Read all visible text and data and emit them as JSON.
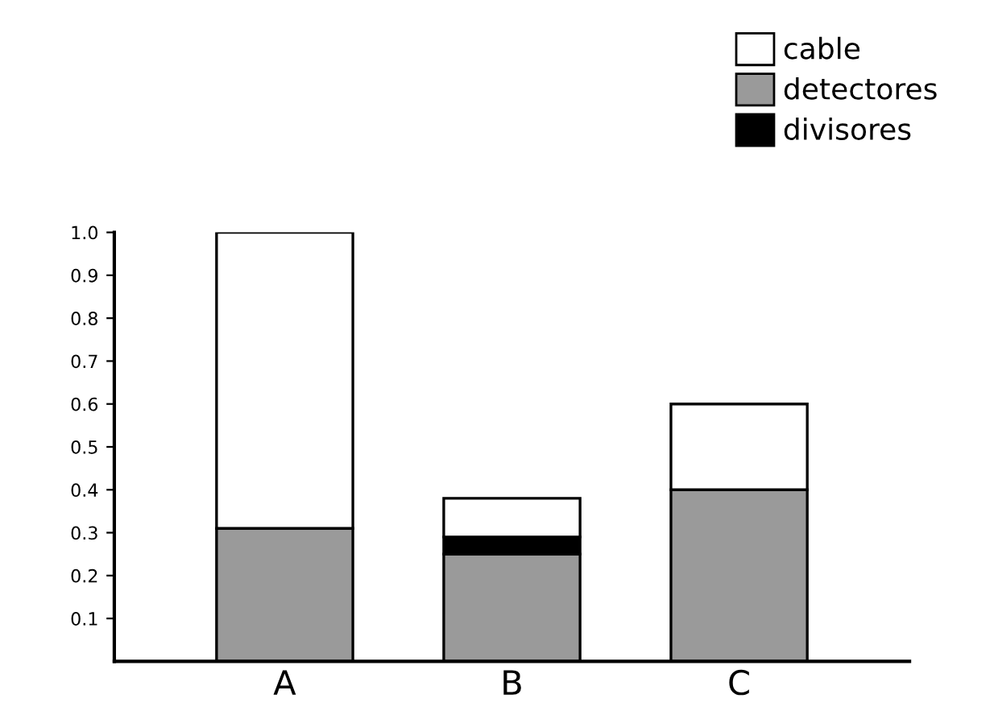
{
  "chart_data": {
    "type": "bar",
    "stacked": true,
    "categories": [
      "A",
      "B",
      "C"
    ],
    "series": [
      {
        "name": "detectores",
        "color": "#9a9a9a",
        "values": [
          0.31,
          0.25,
          0.4
        ]
      },
      {
        "name": "divisores",
        "color": "#000000",
        "values": [
          null,
          0.04,
          null
        ]
      },
      {
        "name": "cable",
        "color": "#ffffff",
        "values": [
          0.69,
          0.09,
          0.2
        ]
      }
    ],
    "ylim": [
      0,
      1.0
    ],
    "yticks": [
      0.1,
      0.2,
      0.3,
      0.4,
      0.5,
      0.6,
      0.7,
      0.8,
      0.9,
      {
        "value": 1.0,
        "label": "1.0"
      }
    ],
    "grid": false,
    "legend": "top right"
  }
}
